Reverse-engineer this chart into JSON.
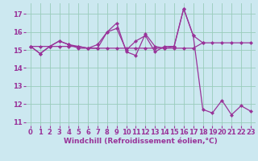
{
  "bg_color": "#cce8f0",
  "grid_color": "#99ccbb",
  "line_color": "#993399",
  "marker": "D",
  "markersize": 2.5,
  "linewidth": 0.9,
  "xlabel": "Windchill (Refroidissement éolien,°C)",
  "xlabel_fontsize": 6.5,
  "tick_fontsize": 6.0,
  "ylim": [
    10.8,
    17.6
  ],
  "xlim": [
    -0.5,
    23.5
  ],
  "yticks": [
    11,
    12,
    13,
    14,
    15,
    16,
    17
  ],
  "xticks": [
    0,
    1,
    2,
    3,
    4,
    5,
    6,
    7,
    8,
    9,
    10,
    11,
    12,
    13,
    14,
    15,
    16,
    17,
    18,
    19,
    20,
    21,
    22,
    23
  ],
  "series_flat_x": [
    0,
    1,
    2,
    3,
    4,
    5,
    6,
    7,
    8,
    9,
    10,
    11,
    12,
    13,
    14,
    15,
    16,
    17,
    18,
    19,
    20,
    21,
    22,
    23
  ],
  "series_flat_y": [
    15.2,
    15.2,
    15.2,
    15.2,
    15.2,
    15.2,
    15.1,
    15.1,
    15.1,
    15.1,
    15.1,
    15.1,
    15.1,
    15.1,
    15.1,
    15.1,
    15.1,
    15.1,
    15.4,
    15.4,
    15.4,
    15.4,
    15.4,
    15.4
  ],
  "series_wavy_x": [
    0,
    1,
    2,
    3,
    4,
    5,
    6,
    7,
    8,
    9,
    10,
    11,
    12,
    13,
    14,
    15,
    16,
    17,
    18
  ],
  "series_wavy_y": [
    15.2,
    14.8,
    15.2,
    15.5,
    15.3,
    15.2,
    15.1,
    15.3,
    16.0,
    16.2,
    15.0,
    15.5,
    15.8,
    14.9,
    15.2,
    15.2,
    17.3,
    15.8,
    15.4
  ],
  "series_desc_x": [
    0,
    1,
    2,
    3,
    4,
    5,
    6,
    7,
    8,
    9,
    10,
    11,
    12,
    13,
    14,
    15,
    16,
    17,
    18,
    19,
    20,
    21,
    22,
    23
  ],
  "series_desc_y": [
    15.2,
    14.8,
    15.2,
    15.5,
    15.3,
    15.1,
    15.1,
    15.1,
    16.0,
    16.5,
    14.9,
    14.7,
    15.9,
    15.2,
    15.1,
    15.2,
    17.3,
    15.8,
    11.7,
    11.5,
    12.2,
    11.4,
    11.9,
    11.6
  ]
}
